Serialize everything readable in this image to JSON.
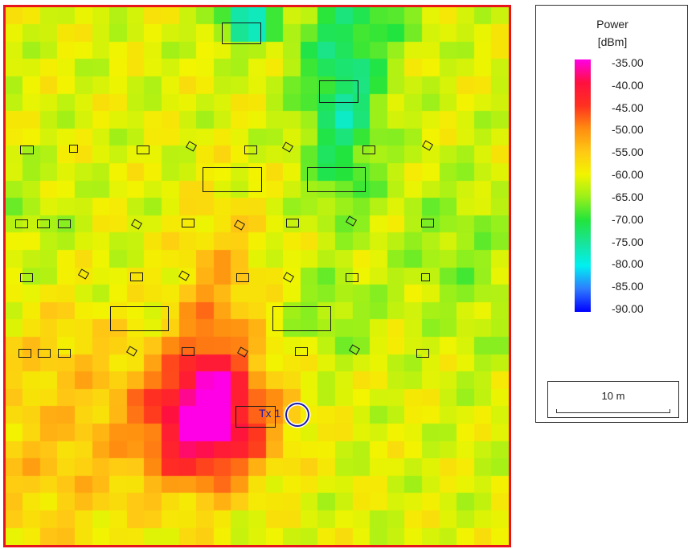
{
  "legend": {
    "title": "Power",
    "unit": "[dBm]",
    "labels": [
      "-35.00",
      "-40.00",
      "-45.00",
      "-50.00",
      "-55.00",
      "-60.00",
      "-65.00",
      "-70.00",
      "-75.00",
      "-80.00",
      "-85.00",
      "-90.00"
    ],
    "gradient_colors": [
      "#ff00e6",
      "#ff1040",
      "#ff3020",
      "#ff8c10",
      "#ffc814",
      "#f2f400",
      "#9af01a",
      "#22e43c",
      "#18e49a",
      "#00f0f0",
      "#2e7cff",
      "#0000ff"
    ]
  },
  "scale": {
    "label": "10 m"
  },
  "transmitter": {
    "label": "Tx 1",
    "color": "#1a1aa8"
  },
  "frame_color": "#e8141b",
  "chart_data": {
    "type": "heatmap",
    "title": "Power",
    "unit": "dBm",
    "color_range": [
      -90,
      -35
    ],
    "transmitter": "Tx 1"
  }
}
